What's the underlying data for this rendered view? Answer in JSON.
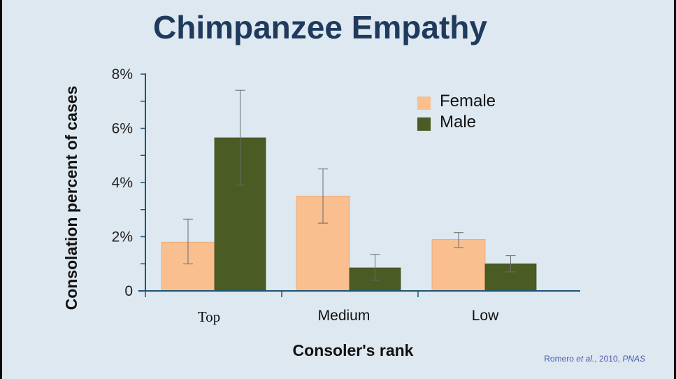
{
  "slide": {
    "title": "Chimpanzee Empathy",
    "citation": {
      "authors": "Romero ",
      "etal": "et al.",
      "year": ", 2010, ",
      "journal": "PNAS"
    }
  },
  "colors": {
    "female": "#f9bf8e",
    "male": "#4b5b24",
    "axis": "#1e5470",
    "error_bar": "#6a6a6a",
    "title": "#1f3a5c",
    "background": "#dde8f1"
  },
  "chart_data": {
    "type": "bar",
    "title": "",
    "xlabel": "Consoler's rank",
    "ylabel": "Consolation percent of cases",
    "categories": [
      "Top",
      "Medium",
      "Low"
    ],
    "ylim": [
      0,
      8
    ],
    "yticks": [
      0,
      2,
      4,
      6,
      8
    ],
    "ytick_labels": [
      "0",
      "2%",
      "4%",
      "6%",
      "8%"
    ],
    "grid": false,
    "legend_position": "top-right",
    "series": [
      {
        "name": "Female",
        "values": [
          1.8,
          3.5,
          1.9
        ],
        "error_low": [
          1.0,
          2.5,
          1.6
        ],
        "error_high": [
          2.65,
          4.5,
          2.15
        ]
      },
      {
        "name": "Male",
        "values": [
          5.65,
          0.85,
          1.0
        ],
        "error_low": [
          3.9,
          0.4,
          0.7
        ],
        "error_high": [
          7.4,
          1.35,
          1.3
        ]
      }
    ]
  }
}
